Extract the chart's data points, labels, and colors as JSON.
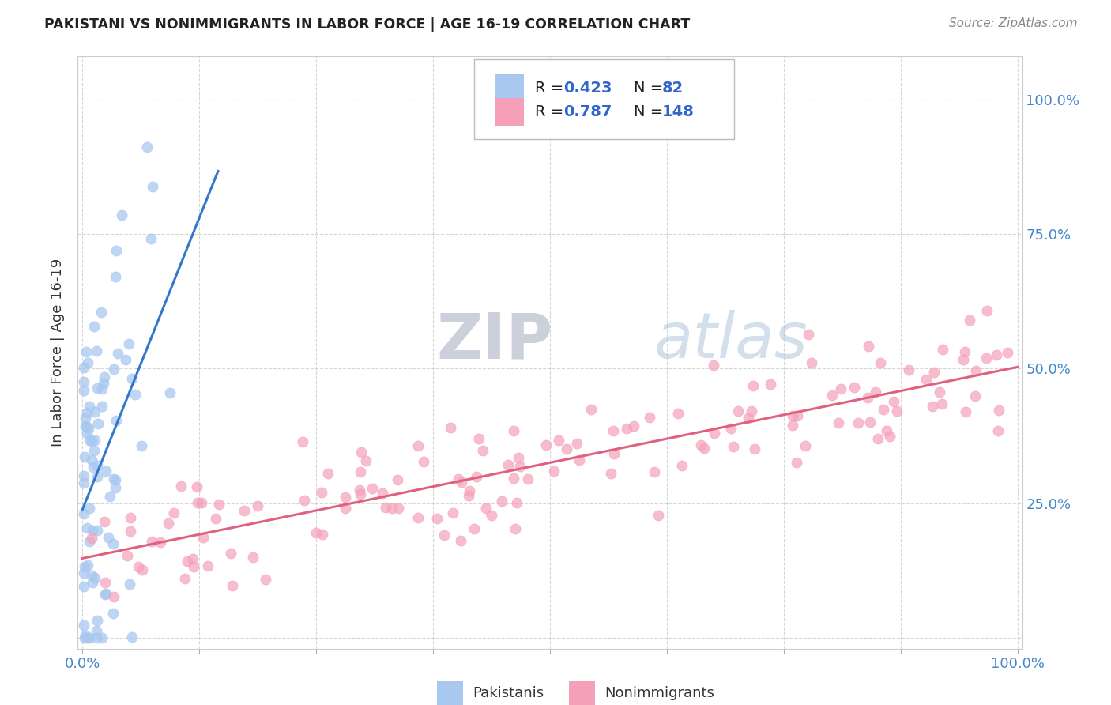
{
  "title": "PAKISTANI VS NONIMMIGRANTS IN LABOR FORCE | AGE 16-19 CORRELATION CHART",
  "source": "Source: ZipAtlas.com",
  "ylabel": "In Labor Force | Age 16-19",
  "pakistanis_R": 0.423,
  "pakistanis_N": 82,
  "nonimmigrants_R": 0.787,
  "nonimmigrants_N": 148,
  "pakistani_color": "#a8c8f0",
  "nonimmigrant_color": "#f5a0b8",
  "pakistani_line_color": "#3377cc",
  "nonimmigrant_line_color": "#e06080",
  "watermark_zip": "ZIP",
  "watermark_atlas": "atlas",
  "tick_color": "#4488cc",
  "grid_color": "#cccccc",
  "title_color": "#222222",
  "source_color": "#888888",
  "ylabel_color": "#333333",
  "legend_text_color": "#222222",
  "legend_val_color": "#3366cc"
}
